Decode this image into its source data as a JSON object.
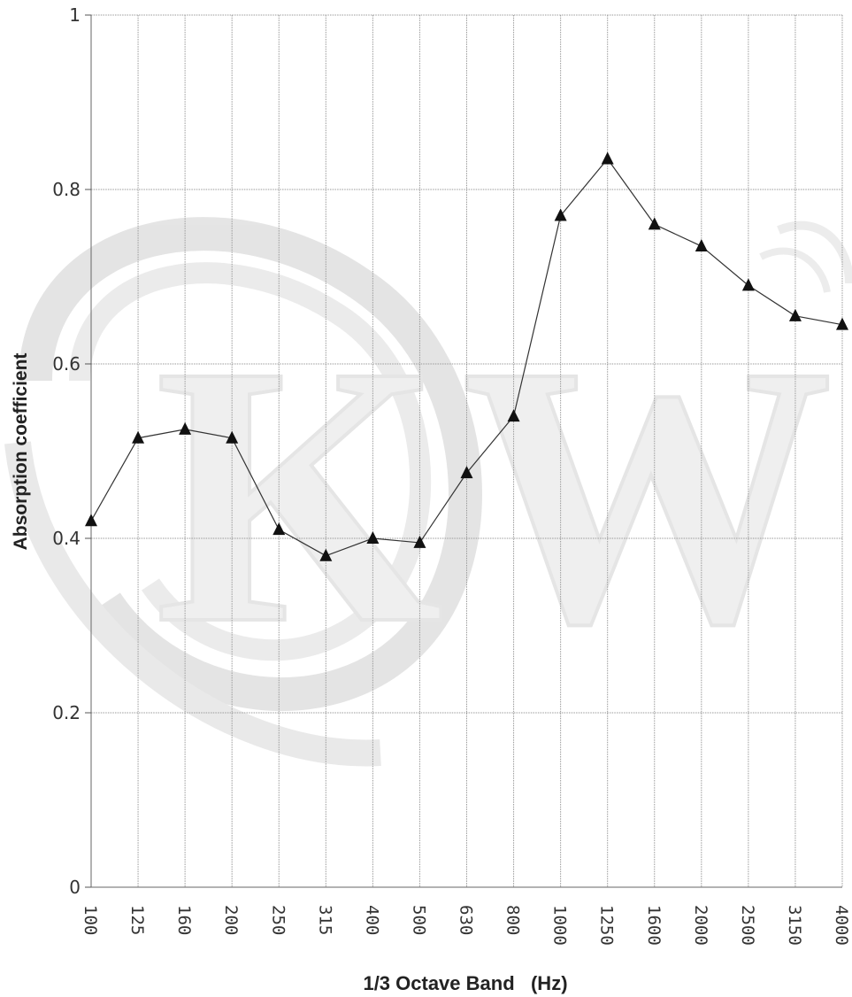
{
  "chart_data": {
    "type": "line",
    "title": "",
    "xlabel": "1/3 Octave Band   (Hz)",
    "ylabel": "Absorption coefficient",
    "categories": [
      "100",
      "125",
      "160",
      "200",
      "250",
      "315",
      "400",
      "500",
      "630",
      "800",
      "1000",
      "1250",
      "1600",
      "2000",
      "2500",
      "3150",
      "4000"
    ],
    "series": [
      {
        "values": [
          0.42,
          0.515,
          0.525,
          0.515,
          0.41,
          0.38,
          0.4,
          0.395,
          0.475,
          0.54,
          0.77,
          0.835,
          0.76,
          0.735,
          0.69,
          0.655,
          0.645
        ]
      }
    ],
    "ylim": [
      0,
      1
    ],
    "yticks": [
      "0",
      "0.2",
      "0.4",
      "0.6",
      "0.8",
      "1"
    ],
    "grid": true,
    "legend": "none",
    "marker": "triangle",
    "line_color": "#333333",
    "marker_color": "#111111",
    "grid_color": "#9a9a9a"
  },
  "watermark": {
    "text": "KW",
    "color": "#d6d6d6"
  }
}
